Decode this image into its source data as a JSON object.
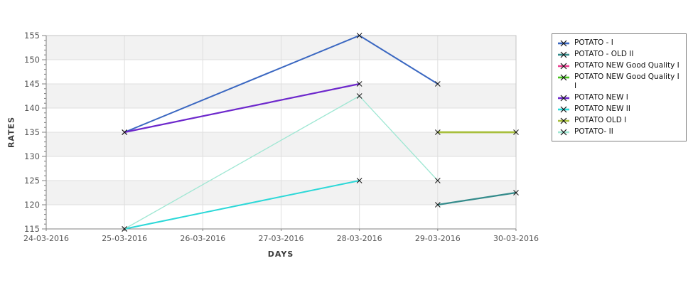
{
  "chart_data": {
    "type": "line",
    "title": "",
    "xlabel": "DAYS",
    "ylabel": "RATES",
    "categories": [
      "24-03-2016",
      "25-03-2016",
      "26-03-2016",
      "27-03-2016",
      "28-03-2016",
      "29-03-2016",
      "30-03-2016"
    ],
    "y_ticks": [
      115,
      120,
      125,
      130,
      135,
      140,
      145,
      150,
      155
    ],
    "ylim": [
      115,
      155
    ],
    "grid": true,
    "legend_position": "right",
    "marker": "x",
    "series": [
      {
        "name": "POTATO - I",
        "color": "#3a67c1",
        "width": 2,
        "points": [
          {
            "x": "25-03-2016",
            "y": 135
          },
          {
            "x": "28-03-2016",
            "y": 155
          },
          {
            "x": "29-03-2016",
            "y": 145
          }
        ]
      },
      {
        "name": "POTATO - OLD II",
        "color": "#348b8b",
        "width": 2.2,
        "points": [
          {
            "x": "29-03-2016",
            "y": 120
          },
          {
            "x": "30-03-2016",
            "y": 122.5
          }
        ]
      },
      {
        "name": "POTATO NEW Good Quality I",
        "color": "#ec3f90",
        "width": 2,
        "points": []
      },
      {
        "name": "POTATO NEW Good Quality I I",
        "color": "#49c41d",
        "width": 2,
        "points": []
      },
      {
        "name": "POTATO NEW I",
        "color": "#6d28cc",
        "width": 2.2,
        "points": [
          {
            "x": "25-03-2016",
            "y": 135
          },
          {
            "x": "28-03-2016",
            "y": 145
          }
        ]
      },
      {
        "name": "POTATO NEW II",
        "color": "#2cd8d8",
        "width": 2,
        "points": [
          {
            "x": "25-03-2016",
            "y": 115
          },
          {
            "x": "28-03-2016",
            "y": 125
          }
        ]
      },
      {
        "name": "POTATO OLD I",
        "color": "#a8bf3c",
        "width": 2.8,
        "points": [
          {
            "x": "29-03-2016",
            "y": 135
          },
          {
            "x": "30-03-2016",
            "y": 135
          }
        ]
      },
      {
        "name": "POTATO- II",
        "color": "#9fe7d3",
        "width": 1.3,
        "points": [
          {
            "x": "25-03-2016",
            "y": 115
          },
          {
            "x": "28-03-2016",
            "y": 142.5
          },
          {
            "x": "29-03-2016",
            "y": 125
          }
        ]
      }
    ]
  },
  "colors": {
    "band": "#f2f2f2",
    "gridline": "#dfdfdf",
    "plot_border": "#c4c4c4",
    "axis": "#808080",
    "tick": "#808080",
    "tick_label": "#565656",
    "marker": "#141414",
    "legend_border": "#808080"
  }
}
